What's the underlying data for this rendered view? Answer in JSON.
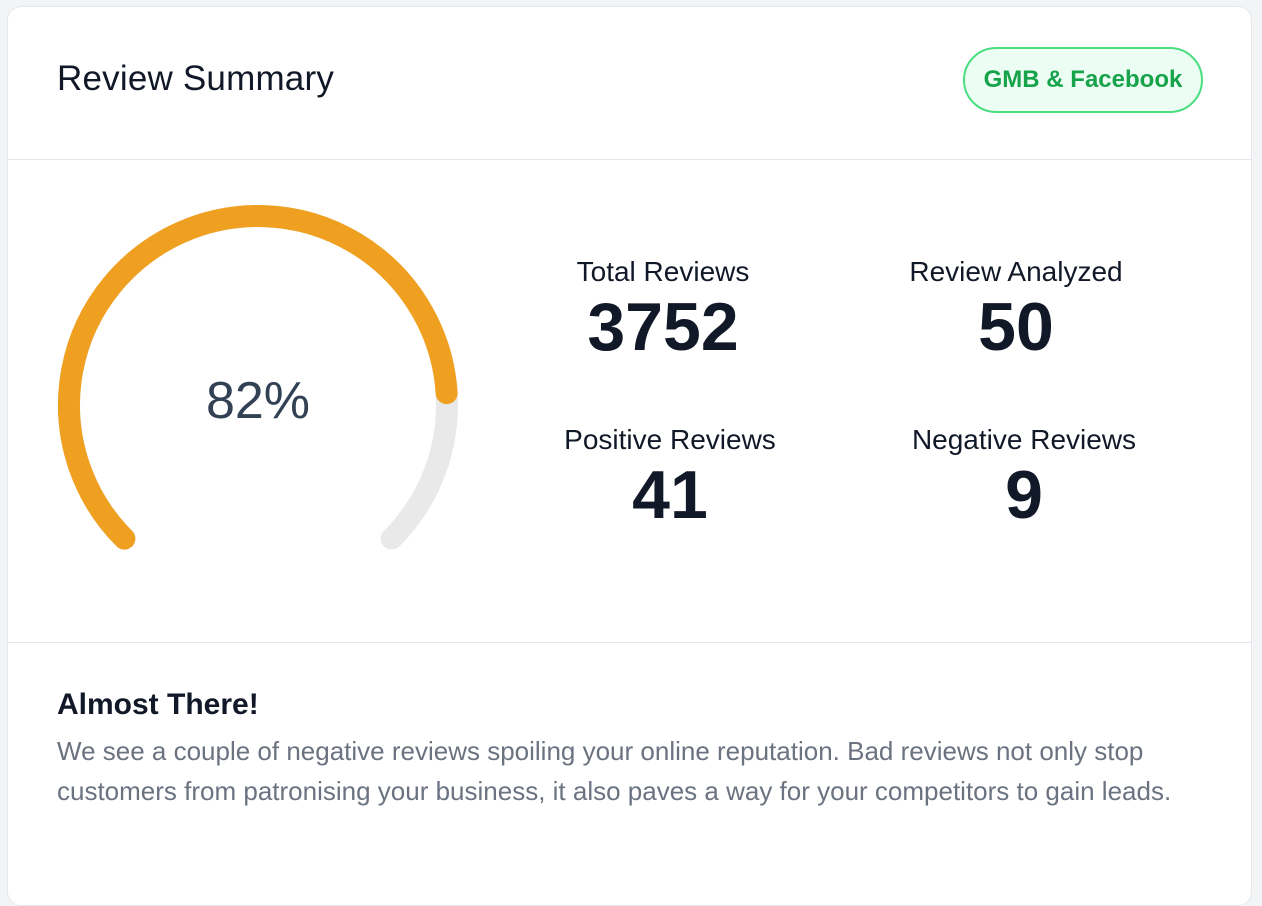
{
  "header": {
    "title": "Review Summary",
    "source_badge": "GMB & Facebook"
  },
  "gauge": {
    "label": "82%",
    "value_percent": 82,
    "fill_color": "#f0a020",
    "track_color": "#e9e9e9"
  },
  "stats": {
    "total_reviews": {
      "label": "Total Reviews",
      "value": "3752"
    },
    "review_analyzed": {
      "label": "Review Analyzed",
      "value": "50"
    },
    "positive_reviews": {
      "label": "Positive Reviews",
      "value": "41"
    },
    "negative_reviews": {
      "label": "Negative Reviews",
      "value": "9"
    }
  },
  "message": {
    "title": "Almost There!",
    "body": "We see a couple of negative reviews spoiling your online reputation. Bad reviews not only stop customers from patronising your business, it also paves a way for your competitors to gain leads."
  },
  "colors": {
    "badge_border": "#4ade80",
    "badge_text": "#16a34a",
    "badge_bg": "#ecfdf3"
  }
}
